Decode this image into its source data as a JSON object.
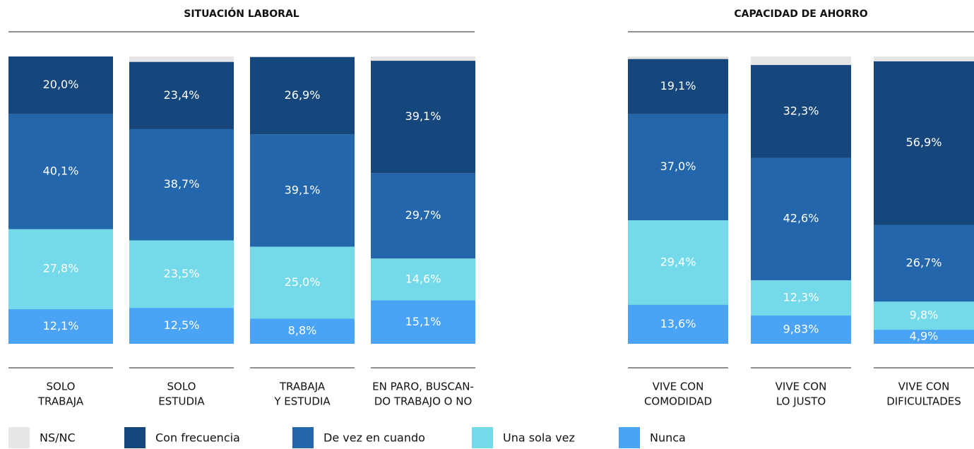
{
  "chart_data": [
    {
      "type": "bar",
      "stacked": true,
      "title": "SITUACIÓN LABORAL",
      "categories": [
        [
          "SOLO",
          "TRABAJA"
        ],
        [
          "SOLO",
          "ESTUDIA"
        ],
        [
          "TRABAJA",
          "Y ESTUDIA"
        ],
        [
          "EN PARO, BUSCAN-",
          "DO TRABAJO O NO"
        ]
      ],
      "ylim": [
        0,
        100
      ],
      "no_answer": {
        "name": "NS/NC",
        "color": "#e6e6e6"
      },
      "series": [
        {
          "name": "Con frecuencia",
          "color": "#15477c",
          "values": [
            20.0,
            23.4,
            26.9,
            39.1
          ],
          "value_labels": [
            "20,0%",
            "23,4%",
            "26,9%",
            "39,1%"
          ]
        },
        {
          "name": "De vez en cuando",
          "color": "#2366ab",
          "values": [
            40.1,
            38.7,
            39.1,
            29.7
          ],
          "value_labels": [
            "40,1%",
            "38,7%",
            "39,1%",
            "29,7%"
          ]
        },
        {
          "name": "Una sola vez",
          "color": "#74d9e8",
          "values": [
            27.8,
            23.5,
            25.0,
            14.6
          ],
          "value_labels": [
            "27,8%",
            "23,5%",
            "25,0%",
            "14,6%"
          ]
        },
        {
          "name": "Nunca",
          "color": "#4aa3f5",
          "values": [
            12.1,
            12.5,
            8.8,
            15.1
          ],
          "value_labels": [
            "12,1%",
            "12,5%",
            "8,8%",
            "15,1%"
          ]
        }
      ]
    },
    {
      "type": "bar",
      "stacked": true,
      "title": "CAPACIDAD DE AHORRO",
      "categories": [
        [
          "VIVE CON",
          "COMODIDAD"
        ],
        [
          "VIVE CON",
          "LO JUSTO"
        ],
        [
          "VIVE CON",
          "DIFICULTADES"
        ]
      ],
      "ylim": [
        0,
        100
      ],
      "series": [
        {
          "name": "Con frecuencia",
          "color": "#15477c",
          "values": [
            19.1,
            32.3,
            56.9
          ],
          "value_labels": [
            "19,1%",
            "32,3%",
            "56,9%"
          ]
        },
        {
          "name": "De vez en cuando",
          "color": "#2366ab",
          "values": [
            37.0,
            42.6,
            26.7
          ],
          "value_labels": [
            "37,0%",
            "42,6%",
            "26,7%"
          ]
        },
        {
          "name": "Una sola vez",
          "color": "#74d9e8",
          "values": [
            29.4,
            12.3,
            9.8
          ],
          "value_labels": [
            "29,4%",
            "12,3%",
            "9,8%"
          ]
        },
        {
          "name": "Nunca",
          "color": "#4aa3f5",
          "values": [
            13.6,
            9.83,
            4.9
          ],
          "value_labels": [
            "13,6%",
            "9,83%",
            "4,9%"
          ]
        }
      ]
    }
  ]
}
